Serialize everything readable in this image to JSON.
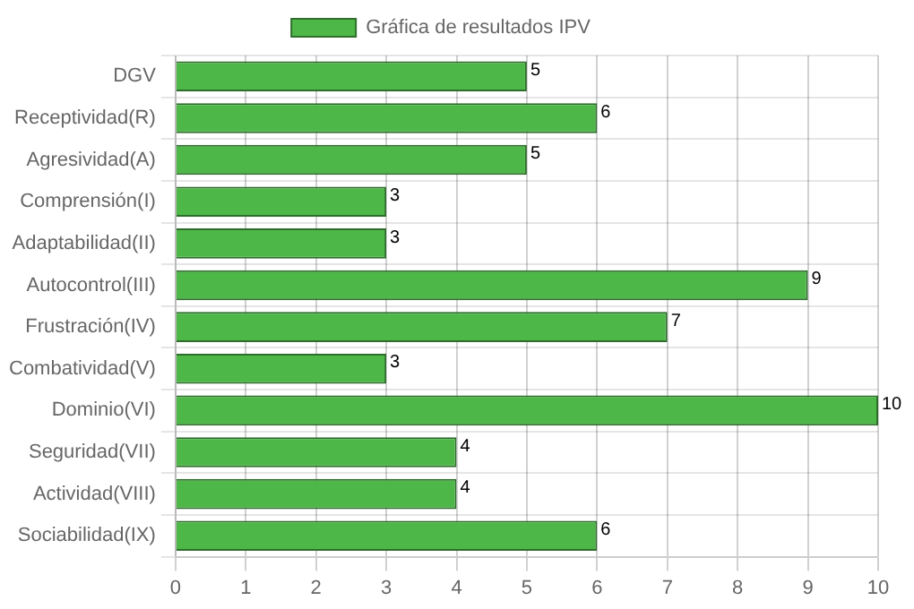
{
  "chart_data": {
    "type": "bar",
    "orientation": "horizontal",
    "categories": [
      "DGV",
      "Receptividad(R)",
      "Agresividad(A)",
      "Comprensión(I)",
      "Adaptabilidad(II)",
      "Autocontrol(III)",
      "Frustración(IV)",
      "Combatividad(V)",
      "Dominio(VI)",
      "Seguridad(VII)",
      "Actividad(VIII)",
      "Sociabilidad(IX)"
    ],
    "series": [
      {
        "name": "Gráfica de resultados IPV",
        "color": "#4db848",
        "values": [
          5,
          6,
          5,
          3,
          3,
          9,
          7,
          3,
          10,
          4,
          4,
          6
        ]
      }
    ],
    "xlim": [
      0,
      10
    ],
    "xticks": [
      0,
      1,
      2,
      3,
      4,
      5,
      6,
      7,
      8,
      9,
      10
    ],
    "grid": true,
    "legend": "top",
    "data_labels": true
  }
}
